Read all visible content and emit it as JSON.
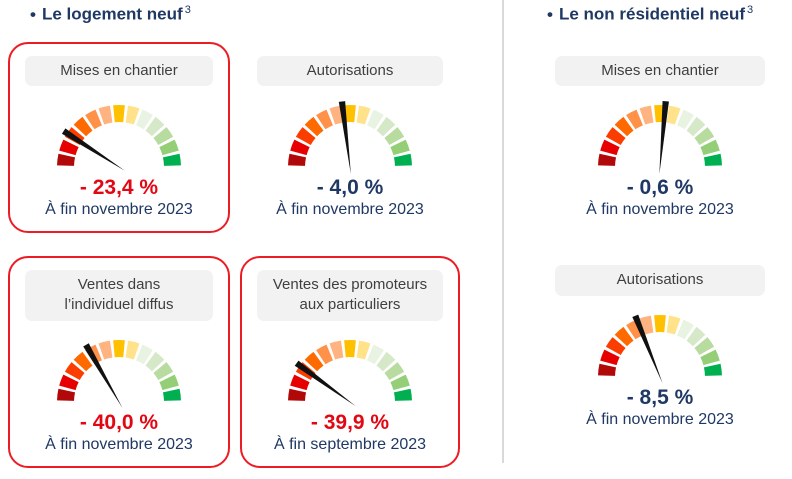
{
  "colors": {
    "navy": "#1f3864",
    "value_red": "#e30613",
    "card_border_red": "#ed1c24",
    "pill_bg": "#f2f2f2",
    "pill_text": "#3f3f3f",
    "divider": "#d9d9d9",
    "needle": "#111111"
  },
  "gauge_segment_colors": [
    "#b10909",
    "#e60000",
    "#fb3d00",
    "#ff6a00",
    "#ff9248",
    "#ffb380",
    "#ffc000",
    "#ffe28a",
    "#e9f3e1",
    "#d5e8c8",
    "#b8dba0",
    "#94cf77",
    "#00b050"
  ],
  "sections": [
    {
      "bullet": "•",
      "title": "Le logement neuf",
      "title_sup": "3",
      "gauges": [
        {
          "label_lines": [
            "Mises en chantier"
          ],
          "value": "- 23,4 %",
          "date": "À fin novembre 2023",
          "value_color": "red",
          "highlighted": true,
          "needle_deg": -57
        },
        {
          "label_lines": [
            "Autorisations"
          ],
          "value": "- 4,0 %",
          "date": "À fin novembre 2023",
          "value_color": "navy",
          "highlighted": false,
          "needle_deg": -7
        },
        {
          "label_lines": [
            "Ventes dans",
            "l’individuel diffus"
          ],
          "value": "- 40,0 %",
          "date": "À fin novembre 2023",
          "value_color": "red",
          "highlighted": true,
          "needle_deg": -30
        },
        {
          "label_lines": [
            "Ventes des promoteurs",
            "aux particuliers"
          ],
          "value": "- 39,9 %",
          "date": "À fin septembre 2023",
          "value_color": "red",
          "highlighted": true,
          "needle_deg": -54
        }
      ]
    },
    {
      "bullet": "•",
      "title": "Le non résidentiel neuf",
      "title_sup": "3",
      "gauges": [
        {
          "label_lines": [
            "Mises en chantier"
          ],
          "value": "- 0,6 %",
          "date": "À fin novembre 2023",
          "value_color": "navy",
          "highlighted": false,
          "needle_deg": 5
        },
        {
          "label_lines": [
            "Autorisations"
          ],
          "value": "- 8,5 %",
          "date": "À fin novembre 2023",
          "value_color": "navy",
          "highlighted": false,
          "needle_deg": -22
        }
      ]
    }
  ],
  "chart_data": [
    {
      "type": "gauge",
      "section": "Le logement neuf",
      "title": "Mises en chantier",
      "value_pct": -23.4,
      "value_label": "- 23,4 %",
      "period": "À fin novembre 2023",
      "scale": "red-to-green 13 segments",
      "highlighted": true
    },
    {
      "type": "gauge",
      "section": "Le logement neuf",
      "title": "Autorisations",
      "value_pct": -4.0,
      "value_label": "- 4,0 %",
      "period": "À fin novembre 2023",
      "scale": "red-to-green 13 segments",
      "highlighted": false
    },
    {
      "type": "gauge",
      "section": "Le logement neuf",
      "title": "Ventes dans l’individuel diffus",
      "value_pct": -40.0,
      "value_label": "- 40,0 %",
      "period": "À fin novembre 2023",
      "scale": "red-to-green 13 segments",
      "highlighted": true
    },
    {
      "type": "gauge",
      "section": "Le logement neuf",
      "title": "Ventes des promoteurs aux particuliers",
      "value_pct": -39.9,
      "value_label": "- 39,9 %",
      "period": "À fin septembre 2023",
      "scale": "red-to-green 13 segments",
      "highlighted": true
    },
    {
      "type": "gauge",
      "section": "Le non résidentiel neuf",
      "title": "Mises en chantier",
      "value_pct": -0.6,
      "value_label": "- 0,6 %",
      "period": "À fin novembre 2023",
      "scale": "red-to-green 13 segments",
      "highlighted": false
    },
    {
      "type": "gauge",
      "section": "Le non résidentiel neuf",
      "title": "Autorisations",
      "value_pct": -8.5,
      "value_label": "- 8,5 %",
      "period": "À fin novembre 2023",
      "scale": "red-to-green 13 segments",
      "highlighted": false
    }
  ]
}
